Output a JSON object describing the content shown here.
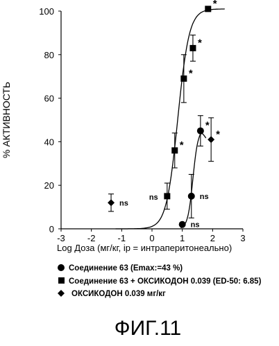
{
  "chart_data": {
    "type": "scatter",
    "title": "",
    "xlabel": "Log Доза (мг/кг, ip = интраперитонеально)",
    "ylabel": "% АКТИВНОСТЬ",
    "xlim": [
      -3,
      3
    ],
    "ylim": [
      0,
      100
    ],
    "xticks": [
      "-3",
      "-2",
      "-1",
      "0",
      "1",
      "2",
      "3"
    ],
    "yticks": [
      "0",
      "20",
      "40",
      "60",
      "80",
      "100"
    ],
    "grid": false,
    "legend_position": "bottom",
    "series": [
      {
        "name": "Соединение 63 (Emax:=43 %)",
        "marker": "circle",
        "points": [
          {
            "x": 1.0,
            "y": 2,
            "err": 0,
            "note": "ns"
          },
          {
            "x": 1.3,
            "y": 15,
            "err": 10,
            "note": ""
          },
          {
            "x": 1.6,
            "y": 45,
            "err": 7,
            "note": "*"
          }
        ],
        "fit": "sigmoid-peak"
      },
      {
        "name": "Соединение 63 + ОКСИКОДОН 0.039 (ED-50: 6.85)",
        "marker": "square",
        "points": [
          {
            "x": 0.5,
            "y": 15,
            "err": 6,
            "note": ""
          },
          {
            "x": 0.75,
            "y": 36,
            "err": 8,
            "note": "*"
          },
          {
            "x": 1.05,
            "y": 69,
            "err": 11,
            "note": "*"
          },
          {
            "x": 1.35,
            "y": 83,
            "err": 6,
            "note": "*"
          },
          {
            "x": 1.85,
            "y": 102,
            "err": 0,
            "note": "*"
          }
        ],
        "fit": "sigmoid"
      },
      {
        "name": "ОКСИКОДОН 0.039 мг/кг",
        "marker": "diamond",
        "points": [
          {
            "x": -1.35,
            "y": 12,
            "err": 4,
            "note": "ns"
          },
          {
            "x": 1.95,
            "y": 41,
            "err": 10,
            "note": "*"
          }
        ],
        "fit": "none"
      }
    ],
    "annotations": [
      {
        "text": "ns",
        "anchor_series": 2,
        "anchor_point": 0
      },
      {
        "text": "ns",
        "anchor_series": 1,
        "anchor_point": 0
      },
      {
        "text": "ns",
        "anchor_series": 0,
        "anchor_point": 1
      },
      {
        "text": "ns",
        "anchor_series": 0,
        "anchor_point": 0
      }
    ]
  },
  "figure_caption": "ФИГ.11"
}
